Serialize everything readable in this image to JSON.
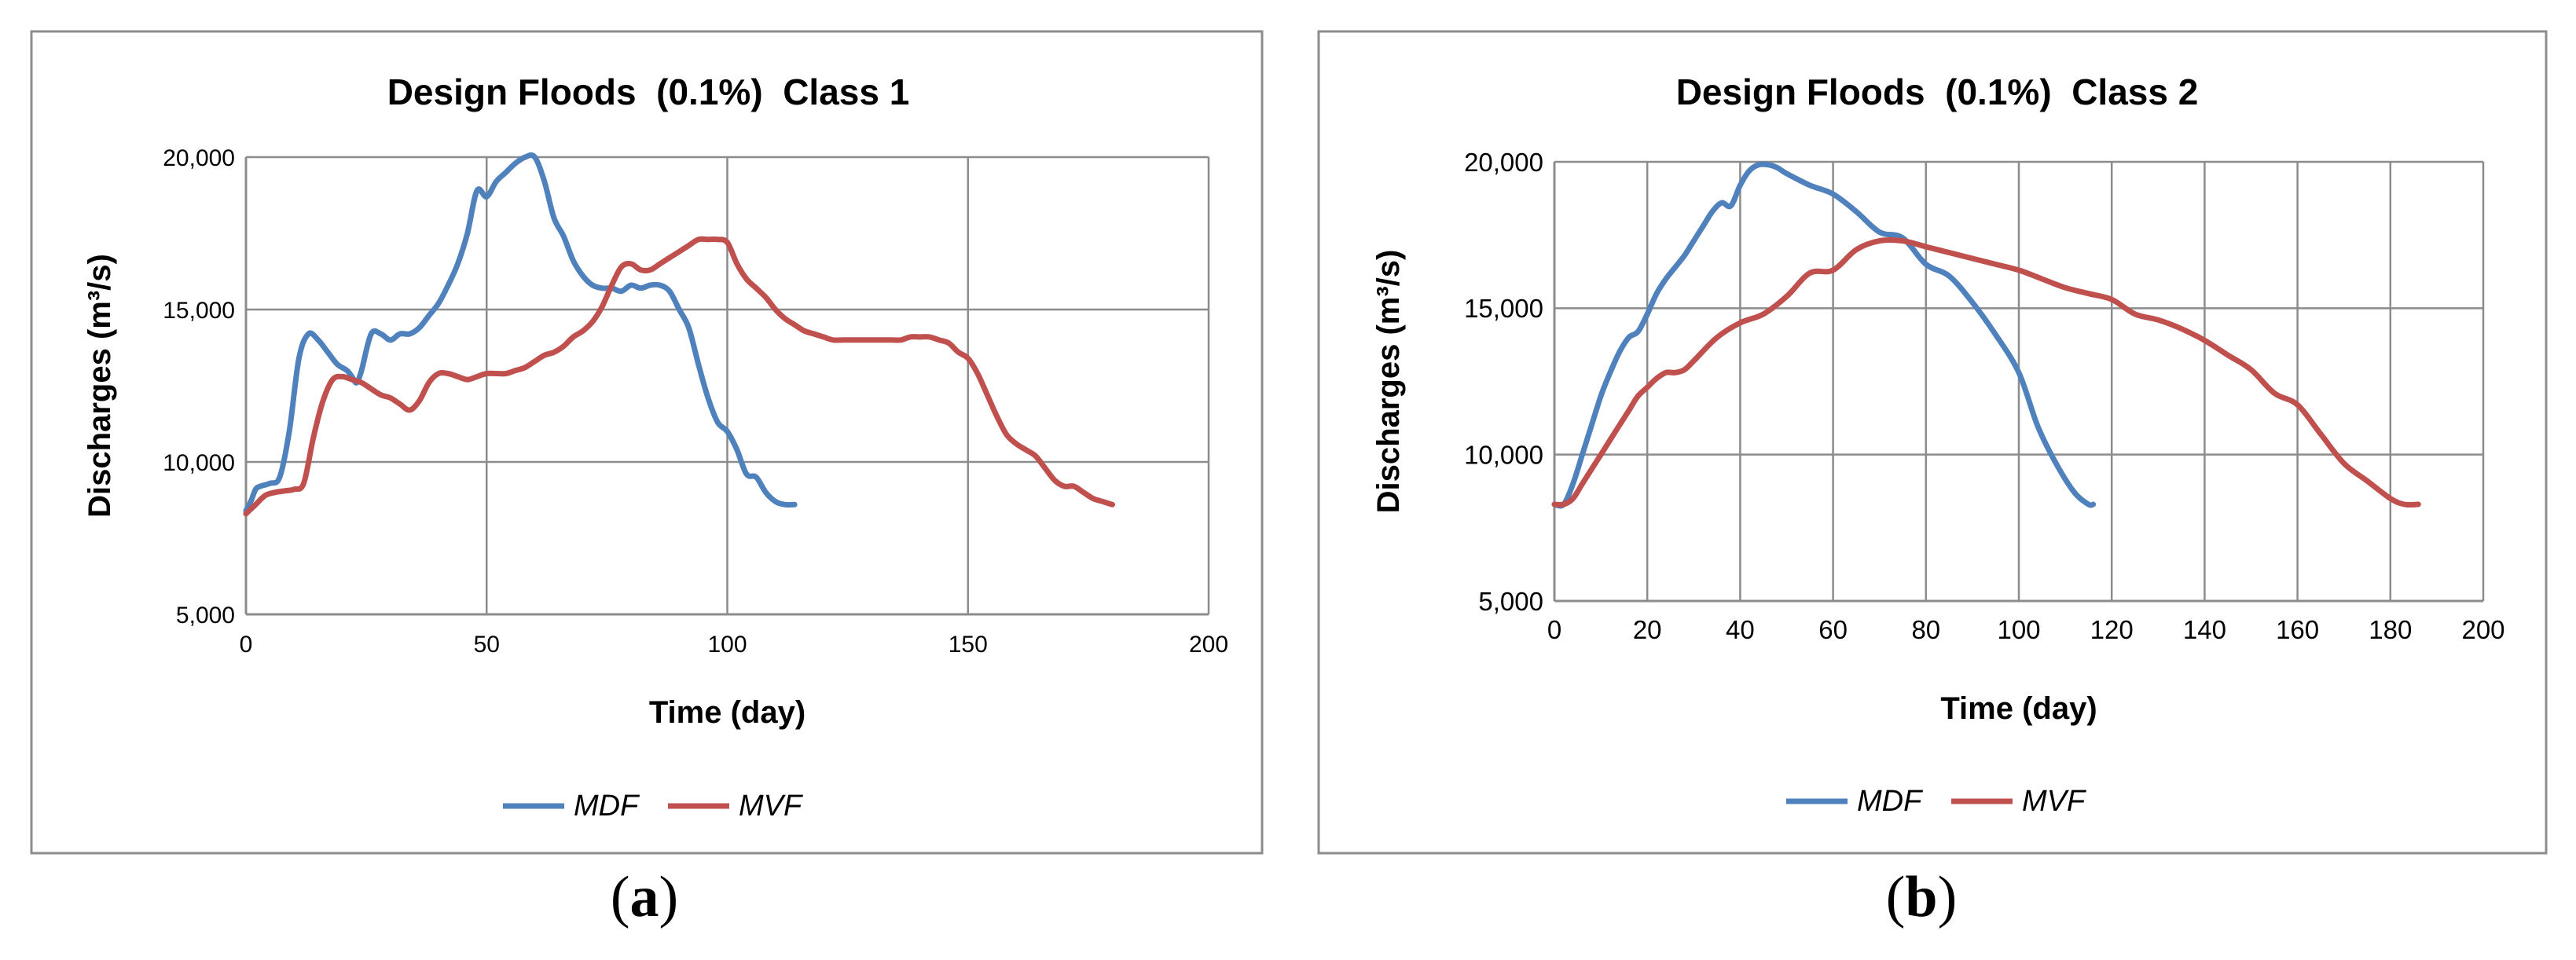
{
  "figures": [
    {
      "caption": "a",
      "chart_data": {
        "type": "line",
        "title": "Design Floods  (0.1%)  Class 1",
        "xlabel": "Time (day)",
        "ylabel": "Discharges (m³/s)",
        "xlim": [
          0,
          200
        ],
        "ylim": [
          5000,
          20000
        ],
        "x_ticks": [
          "0",
          "50",
          "100",
          "150",
          "200"
        ],
        "y_ticks": [
          "5,000",
          "10,000",
          "15,000",
          "20,000"
        ],
        "grid": true,
        "legend": "bottom",
        "series": [
          {
            "name": "MDF",
            "color": "#4F81BD",
            "x": [
              0,
              1,
              2,
              3,
              5,
              7,
              9,
              11,
              13,
              15,
              17,
              19,
              21,
              22,
              23,
              24,
              26,
              28,
              30,
              32,
              34,
              36,
              38,
              40,
              42,
              44,
              46,
              48,
              50,
              52,
              54,
              56,
              58,
              60,
              62,
              64,
              66,
              68,
              70,
              72,
              74,
              76,
              78,
              80,
              82,
              84,
              86,
              88,
              90,
              92,
              94,
              96,
              98,
              100,
              102,
              104,
              106,
              108,
              110,
              112,
              114
            ],
            "y": [
              8400,
              8700,
              9100,
              9200,
              9300,
              9500,
              11000,
              13400,
              14200,
              14000,
              13600,
              13200,
              13000,
              12800,
              12600,
              13000,
              14200,
              14200,
              14000,
              14200,
              14200,
              14400,
              14800,
              15200,
              15800,
              16500,
              17500,
              18900,
              18700,
              19200,
              19500,
              19800,
              20000,
              20000,
              19200,
              18000,
              17400,
              16600,
              16100,
              15800,
              15700,
              15700,
              15600,
              15800,
              15700,
              15800,
              15800,
              15600,
              15000,
              14400,
              13200,
              12100,
              11300,
              11000,
              10400,
              9600,
              9500,
              9000,
              8700,
              8600,
              8600
            ]
          },
          {
            "name": "MVF",
            "color": "#C0504D",
            "x": [
              0,
              2,
              4,
              6,
              8,
              10,
              12,
              14,
              16,
              18,
              20,
              22,
              24,
              26,
              28,
              30,
              32,
              34,
              36,
              38,
              40,
              42,
              44,
              46,
              48,
              50,
              52,
              54,
              56,
              58,
              60,
              62,
              64,
              66,
              68,
              70,
              72,
              74,
              76,
              78,
              80,
              82,
              84,
              86,
              88,
              90,
              92,
              94,
              96,
              98,
              100,
              102,
              104,
              106,
              108,
              110,
              112,
              114,
              116,
              118,
              120,
              122,
              124,
              126,
              128,
              130,
              132,
              134,
              136,
              138,
              140,
              142,
              144,
              146,
              148,
              150,
              152,
              154,
              156,
              158,
              160,
              162,
              164,
              166,
              168,
              170,
              172,
              174,
              176,
              178,
              180
            ],
            "y": [
              8300,
              8600,
              8900,
              9000,
              9050,
              9100,
              9300,
              10800,
              12000,
              12700,
              12800,
              12700,
              12600,
              12400,
              12200,
              12100,
              11900,
              11700,
              12000,
              12600,
              12900,
              12900,
              12800,
              12700,
              12800,
              12900,
              12900,
              12900,
              13000,
              13100,
              13300,
              13500,
              13600,
              13800,
              14100,
              14300,
              14600,
              15100,
              15800,
              16400,
              16500,
              16300,
              16300,
              16500,
              16700,
              16900,
              17100,
              17300,
              17300,
              17300,
              17200,
              16500,
              16000,
              15700,
              15400,
              15000,
              14700,
              14500,
              14300,
              14200,
              14100,
              14000,
              14000,
              14000,
              14000,
              14000,
              14000,
              14000,
              14000,
              14100,
              14100,
              14100,
              14000,
              13900,
              13600,
              13400,
              12900,
              12200,
              11500,
              10900,
              10600,
              10400,
              10200,
              9800,
              9400,
              9200,
              9200,
              9000,
              8800,
              8700,
              8600
            ]
          }
        ]
      }
    },
    {
      "caption": "b",
      "chart_data": {
        "type": "line",
        "title": "Design Floods  (0.1%)  Class 2",
        "xlabel": "Time (day)",
        "ylabel": "Discharges (m³/s)",
        "xlim": [
          0,
          200
        ],
        "ylim": [
          5000,
          20000
        ],
        "x_ticks": [
          "0",
          "20",
          "40",
          "60",
          "80",
          "100",
          "120",
          "140",
          "160",
          "180",
          "200"
        ],
        "y_ticks": [
          "5,000",
          "10,000",
          "15,000",
          "20,000"
        ],
        "grid": true,
        "legend": "bottom",
        "series": [
          {
            "name": "MDF",
            "color": "#4F81BD",
            "x": [
              0,
              2,
              4,
              6,
              8,
              10,
              12,
              14,
              16,
              18,
              20,
              22,
              24,
              26,
              28,
              30,
              32,
              34,
              36,
              38,
              40,
              42,
              44,
              46,
              48,
              50,
              55,
              60,
              65,
              70,
              75,
              80,
              85,
              90,
              95,
              100,
              104,
              108,
              112,
              115,
              116
            ],
            "y": [
              8300,
              8300,
              9000,
              10000,
              11000,
              12000,
              12800,
              13500,
              14000,
              14200,
              14800,
              15500,
              16000,
              16400,
              16800,
              17300,
              17800,
              18300,
              18600,
              18500,
              19200,
              19700,
              19900,
              19900,
              19800,
              19600,
              19200,
              18900,
              18300,
              17600,
              17400,
              16500,
              16100,
              15200,
              14100,
              12800,
              11000,
              9700,
              8700,
              8300,
              8300
            ]
          },
          {
            "name": "MVF",
            "color": "#C0504D",
            "x": [
              0,
              2,
              4,
              6,
              8,
              10,
              12,
              14,
              16,
              18,
              20,
              22,
              24,
              26,
              28,
              30,
              35,
              40,
              45,
              50,
              55,
              60,
              65,
              70,
              75,
              80,
              85,
              90,
              95,
              100,
              105,
              110,
              115,
              120,
              125,
              130,
              135,
              140,
              145,
              150,
              155,
              160,
              165,
              170,
              175,
              180,
              183,
              186
            ],
            "y": [
              8300,
              8300,
              8500,
              9000,
              9500,
              10000,
              10500,
              11000,
              11500,
              12000,
              12300,
              12600,
              12800,
              12800,
              12900,
              13200,
              14000,
              14500,
              14800,
              15400,
              16200,
              16300,
              17000,
              17300,
              17300,
              17100,
              16900,
              16700,
              16500,
              16300,
              16000,
              15700,
              15500,
              15300,
              14800,
              14600,
              14300,
              13900,
              13400,
              12900,
              12100,
              11700,
              10700,
              9700,
              9100,
              8500,
              8300,
              8300
            ]
          }
        ]
      }
    }
  ]
}
